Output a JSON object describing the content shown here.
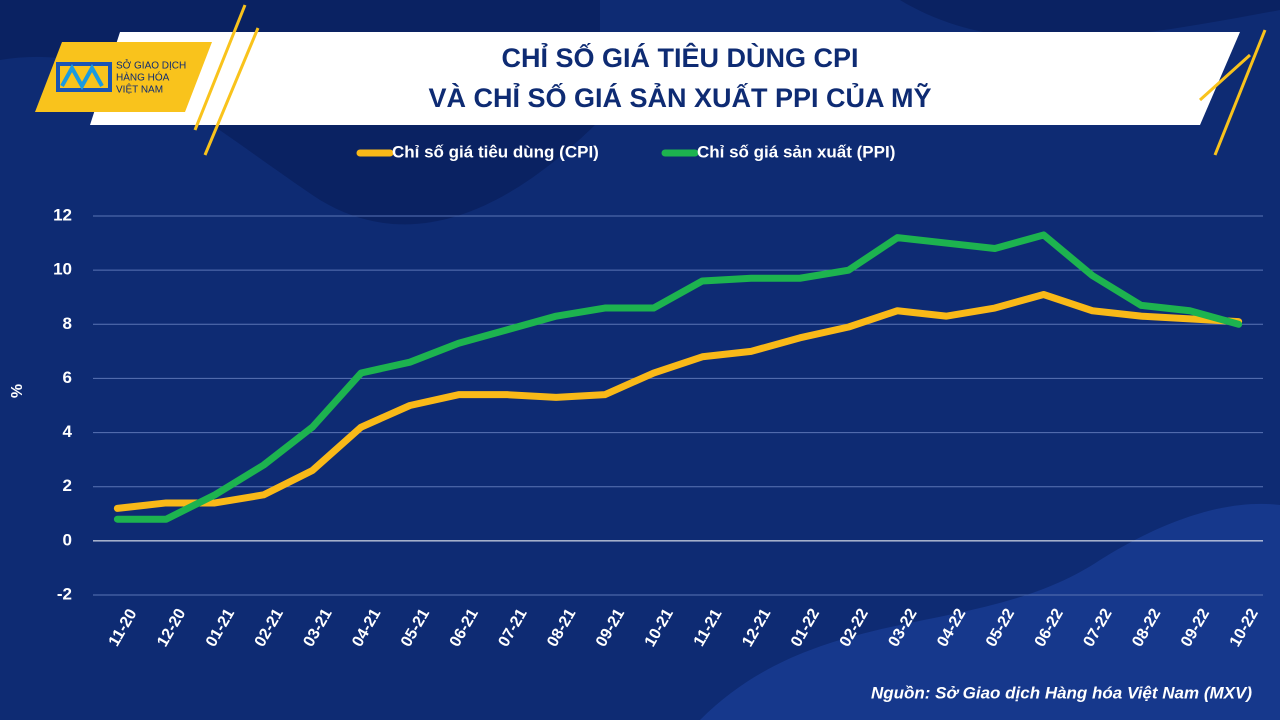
{
  "logo": [
    "SỞ GIAO DỊCH",
    "HÀNG HÓA",
    "VIỆT NAM"
  ],
  "source": "Nguồn: Sở Giao dịch Hàng hóa Việt Nam (MXV)",
  "chart_data": {
    "type": "line",
    "title": [
      "CHỈ SỐ GIÁ TIÊU DÙNG CPI",
      "VÀ CHỈ SỐ GIÁ SẢN XUẤT PPI CỦA MỸ"
    ],
    "y_label": "%",
    "categories": [
      "11-20",
      "12-20",
      "01-21",
      "02-21",
      "03-21",
      "04-21",
      "05-21",
      "06-21",
      "07-21",
      "08-21",
      "09-21",
      "10-21",
      "11-21",
      "12-21",
      "01-22",
      "02-22",
      "03-22",
      "04-22",
      "05-22",
      "06-22",
      "07-22",
      "08-22",
      "09-22",
      "10-22"
    ],
    "series": [
      {
        "name": "Chỉ số giá tiêu dùng (CPI)",
        "color": "#f9b918",
        "values": [
          1.2,
          1.4,
          1.4,
          1.7,
          2.6,
          4.2,
          5.0,
          5.4,
          5.4,
          5.3,
          5.4,
          6.2,
          6.8,
          7.0,
          7.5,
          7.9,
          8.5,
          8.3,
          8.6,
          9.1,
          8.5,
          8.3,
          8.2,
          8.1
        ]
      },
      {
        "name": "Chỉ số giá sản xuất (PPI)",
        "color": "#1db34f",
        "values": [
          0.8,
          0.8,
          1.7,
          2.8,
          4.2,
          6.2,
          6.6,
          7.3,
          7.8,
          8.3,
          8.6,
          8.6,
          9.6,
          9.7,
          9.7,
          10.0,
          11.2,
          11.0,
          10.8,
          11.3,
          9.8,
          8.7,
          8.5,
          8.0
        ]
      }
    ],
    "ylim": [
      -2,
      12
    ],
    "yticks": [
      -2,
      0,
      2,
      4,
      6,
      8,
      10,
      12
    ],
    "grid": true,
    "legend": "top"
  }
}
